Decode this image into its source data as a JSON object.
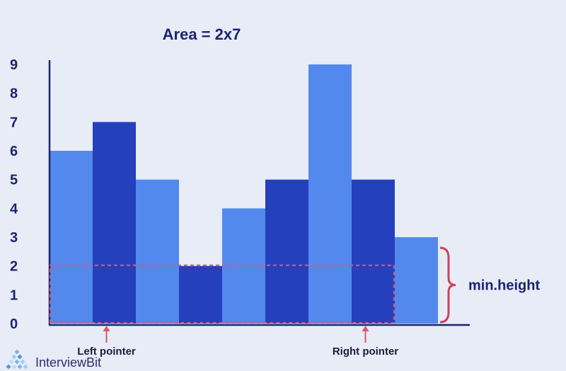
{
  "chart_data": {
    "type": "bar",
    "title": "Area = 2x7",
    "xlabel": "",
    "ylabel": "",
    "ylim": [
      0,
      9
    ],
    "yticks": [
      0,
      1,
      2,
      3,
      4,
      5,
      6,
      7,
      8,
      9
    ],
    "values": [
      6,
      7,
      5,
      2,
      4,
      5,
      9,
      5,
      3
    ],
    "bar_shades": [
      "light",
      "dark",
      "light",
      "dark",
      "light",
      "dark",
      "light",
      "dark",
      "light"
    ],
    "highlight_area": {
      "start_index": 0,
      "end_index": 7,
      "height": 2
    },
    "annotations": {
      "left_pointer": {
        "label": "Left pointer",
        "index": 1
      },
      "right_pointer": {
        "label": "Right pointer",
        "index": 7
      },
      "min_height": {
        "label": "min.height",
        "from": 0,
        "to": 3
      }
    }
  },
  "colors": {
    "light_bar": "#5389ec",
    "dark_bar": "#2440bd",
    "axis": "#1b2470",
    "highlight": "#d9596b",
    "brace": "#c8455a",
    "arrow": "#d9596b"
  },
  "brand": {
    "name": "InterviewBit",
    "icon": "interviewbit-logo-icon"
  }
}
